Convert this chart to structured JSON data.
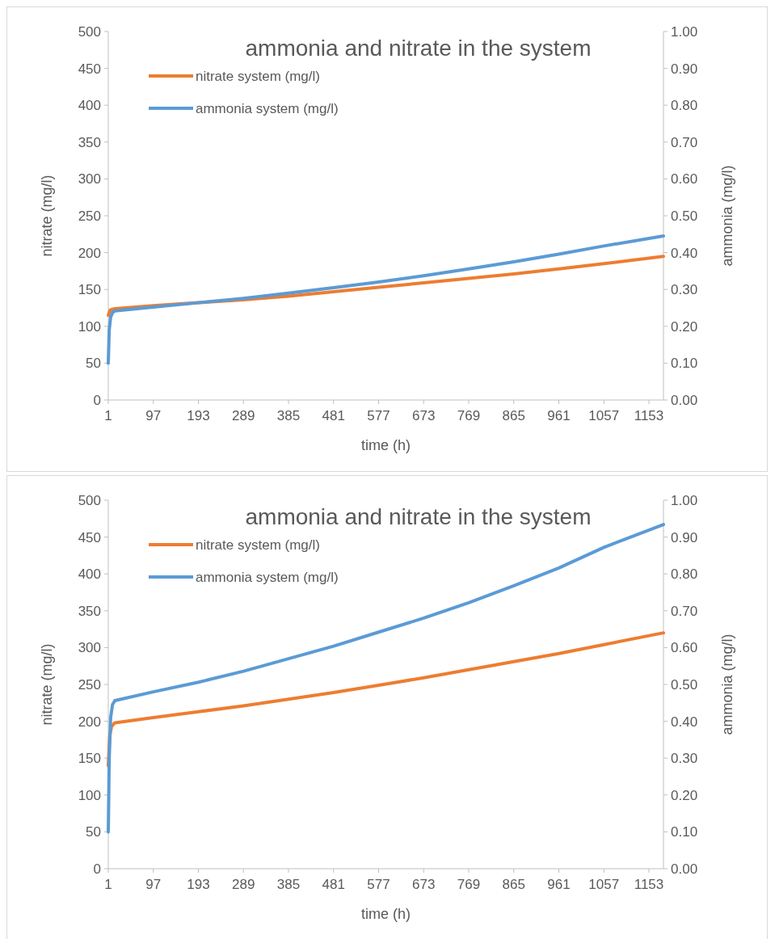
{
  "chart_data": [
    {
      "type": "line",
      "title": "ammonia and nitrate in the system",
      "xlabel": "time (h)",
      "ylabel": "nitrate (mg/l)",
      "y2label": "ammonia (mg/l)",
      "xlim": [
        1,
        1184
      ],
      "xticks": [
        1,
        97,
        193,
        289,
        385,
        481,
        577,
        673,
        769,
        865,
        961,
        1057,
        1153
      ],
      "ylim": [
        0,
        500
      ],
      "yticks": [
        0,
        50,
        100,
        150,
        200,
        250,
        300,
        350,
        400,
        450,
        500
      ],
      "y2lim": [
        0,
        1
      ],
      "y2ticks": [
        {
          "value": 0,
          "label": "0.00"
        },
        {
          "value": 0.1,
          "label": "0.10"
        },
        {
          "value": 0.2,
          "label": "0.20"
        },
        {
          "value": 0.3,
          "label": "0.30"
        },
        {
          "value": 0.4,
          "label": "0.40"
        },
        {
          "value": 0.5,
          "label": "0.50"
        },
        {
          "value": 0.6,
          "label": "0.60"
        },
        {
          "value": 0.7,
          "label": "0.70"
        },
        {
          "value": 0.8,
          "label": "0.80"
        },
        {
          "value": 0.9,
          "label": "0.90"
        },
        {
          "value": 1,
          "label": "1.00"
        }
      ],
      "legend": "top left",
      "grid": false,
      "series": [
        {
          "name": "nitrate system (mg/l)",
          "color": "#ed7d31",
          "x": [
            1,
            5,
            15,
            97,
            193,
            289,
            385,
            481,
            577,
            673,
            769,
            865,
            961,
            1057,
            1184
          ],
          "values": [
            115,
            122,
            124,
            128,
            132,
            136,
            141,
            147,
            153,
            159,
            165,
            171,
            178,
            185,
            195
          ]
        },
        {
          "name": "ammonia system (mg/l)",
          "color": "#5b9bd5",
          "axis": "y2",
          "x": [
            1,
            3,
            6,
            10,
            15,
            97,
            193,
            289,
            385,
            481,
            577,
            673,
            769,
            865,
            961,
            1057,
            1184
          ],
          "values": [
            0.1,
            0.19,
            0.225,
            0.237,
            0.242,
            0.252,
            0.264,
            0.276,
            0.29,
            0.305,
            0.32,
            0.337,
            0.356,
            0.375,
            0.396,
            0.418,
            0.445
          ]
        }
      ]
    },
    {
      "type": "line",
      "title": "ammonia and nitrate in the system",
      "xlabel": "time (h)",
      "ylabel": "nitrate (mg/l)",
      "y2label": "ammonia (mg/l)",
      "xlim": [
        1,
        1184
      ],
      "xticks": [
        1,
        97,
        193,
        289,
        385,
        481,
        577,
        673,
        769,
        865,
        961,
        1057,
        1153
      ],
      "ylim": [
        0,
        500
      ],
      "yticks": [
        0,
        50,
        100,
        150,
        200,
        250,
        300,
        350,
        400,
        450,
        500
      ],
      "y2lim": [
        0,
        1
      ],
      "y2ticks": [
        {
          "value": 0,
          "label": "0.00"
        },
        {
          "value": 0.1,
          "label": "0.10"
        },
        {
          "value": 0.2,
          "label": "0.20"
        },
        {
          "value": 0.3,
          "label": "0.30"
        },
        {
          "value": 0.4,
          "label": "0.40"
        },
        {
          "value": 0.5,
          "label": "0.50"
        },
        {
          "value": 0.6,
          "label": "0.60"
        },
        {
          "value": 0.7,
          "label": "0.70"
        },
        {
          "value": 0.8,
          "label": "0.80"
        },
        {
          "value": 0.9,
          "label": "0.90"
        },
        {
          "value": 1,
          "label": "1.00"
        }
      ],
      "legend": "top left",
      "grid": false,
      "series": [
        {
          "name": "nitrate system (mg/l)",
          "color": "#ed7d31",
          "x": [
            1,
            4,
            8,
            15,
            97,
            193,
            289,
            385,
            481,
            577,
            673,
            769,
            865,
            961,
            1057,
            1184
          ],
          "values": [
            140,
            180,
            193,
            198,
            205,
            213,
            221,
            230,
            239,
            249,
            259,
            270,
            281,
            292,
            304,
            320
          ]
        },
        {
          "name": "ammonia system (mg/l)",
          "color": "#5b9bd5",
          "axis": "y2",
          "x": [
            1,
            3,
            6,
            10,
            15,
            97,
            193,
            289,
            385,
            481,
            577,
            673,
            769,
            865,
            961,
            1057,
            1184
          ],
          "values": [
            0.1,
            0.3,
            0.41,
            0.445,
            0.456,
            0.48,
            0.506,
            0.536,
            0.57,
            0.604,
            0.642,
            0.68,
            0.722,
            0.768,
            0.816,
            0.872,
            0.934
          ]
        }
      ]
    }
  ]
}
